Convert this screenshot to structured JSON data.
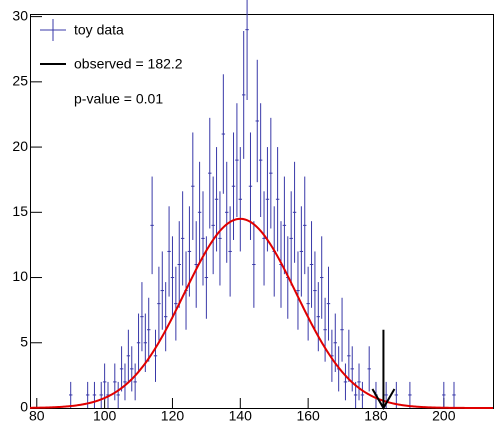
{
  "chart_data": {
    "type": "errorbar",
    "x": [
      90,
      95,
      97,
      99,
      100,
      101,
      103,
      104,
      105,
      106,
      107,
      108,
      109,
      110,
      111,
      112,
      113,
      114,
      115,
      116,
      117,
      118,
      119,
      120,
      121,
      122,
      123,
      124,
      125,
      126,
      127,
      128,
      129,
      130,
      131,
      132,
      133,
      134,
      135,
      136,
      137,
      138,
      139,
      140,
      141,
      142,
      143,
      144,
      145,
      146,
      147,
      148,
      149,
      150,
      151,
      152,
      153,
      154,
      155,
      156,
      157,
      158,
      159,
      160,
      161,
      162,
      163,
      164,
      165,
      166,
      167,
      168,
      169,
      170,
      171,
      172,
      173,
      174,
      175,
      176,
      178,
      180,
      183,
      186,
      190,
      200,
      203
    ],
    "series": [
      {
        "name": "toy data",
        "color": "#3838a8",
        "values": [
          1,
          1,
          1,
          1,
          2,
          1,
          2,
          1,
          3,
          2,
          4,
          3,
          2,
          5,
          7,
          5,
          6,
          14,
          4,
          8,
          9,
          7,
          12,
          10,
          8,
          11,
          13,
          9,
          12,
          17,
          11,
          15,
          13,
          10,
          18,
          14,
          16,
          13,
          21,
          15,
          12,
          17,
          19,
          16,
          24,
          29,
          17,
          11,
          22,
          19,
          13,
          16,
          18,
          12,
          16,
          11,
          14,
          10,
          13,
          15,
          9,
          12,
          14,
          8,
          11,
          9,
          7,
          10,
          6,
          8,
          4,
          5,
          3,
          6,
          2,
          4,
          3,
          1,
          2,
          1,
          3,
          1,
          1,
          1,
          1,
          1,
          1
        ],
        "errors": [
          1,
          1,
          1,
          1,
          1.41,
          1,
          1.41,
          1,
          1.73,
          1.41,
          2,
          1.73,
          1.41,
          2.24,
          2.65,
          2.24,
          2.45,
          3.74,
          2,
          2.83,
          3,
          2.65,
          3.46,
          3.16,
          2.83,
          3.32,
          3.61,
          3,
          3.46,
          4.12,
          3.32,
          3.87,
          3.61,
          3.16,
          4.24,
          3.74,
          4,
          3.61,
          4.58,
          3.87,
          3.46,
          4.12,
          4.36,
          4,
          4.9,
          5.39,
          4.12,
          3.32,
          4.69,
          4.36,
          3.61,
          4,
          4.24,
          3.46,
          4,
          3.32,
          3.74,
          3.16,
          3.61,
          3.87,
          3,
          3.46,
          3.74,
          2.83,
          3.32,
          3,
          2.65,
          3.16,
          2.45,
          2.83,
          2,
          2.24,
          1.73,
          2.45,
          1.41,
          2,
          1.73,
          1,
          1.41,
          1,
          1.73,
          1,
          1,
          1,
          1,
          1,
          1
        ]
      }
    ],
    "bin_width": 1,
    "fit": {
      "name": "observed = 182.2",
      "amplitude": 14.5,
      "mean": 140,
      "sigma": 16.5,
      "color": "#e00000"
    },
    "arrow": {
      "x": 182.2,
      "y_top": 6,
      "y_bottom": 0,
      "color": "#000000"
    },
    "annotation": "p-value = 0.01",
    "xlim": [
      78,
      214.5
    ],
    "xticks": [
      80,
      100,
      120,
      140,
      160,
      180,
      200
    ],
    "ylim": [
      0,
      30.2
    ],
    "yticks": [
      0,
      5,
      10,
      15,
      20,
      25,
      30
    ]
  }
}
